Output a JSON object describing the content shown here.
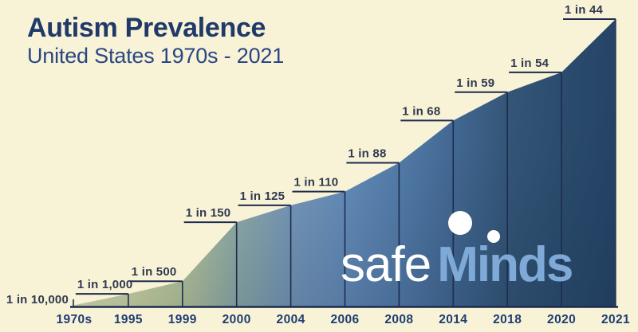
{
  "page": {
    "background_color": "#F8F2D6"
  },
  "header": {
    "title": "Autism Prevalence",
    "subtitle": "United States 1970s - 2021",
    "title_color": "#1F3968",
    "subtitle_color": "#2A4784"
  },
  "logo": {
    "part1": "safe",
    "part2": "Minds",
    "part1_color": "#FFFFFF",
    "part2_color": "#7FA9D6",
    "marks": [
      "head-circle",
      "small-dot"
    ]
  },
  "chart_data": {
    "type": "area",
    "title": "Autism Prevalence",
    "subtitle": "United States 1970s - 2021",
    "categories": [
      "1970s",
      "1995",
      "1999",
      "2000",
      "2004",
      "2006",
      "2008",
      "2014",
      "2018",
      "2020",
      "2021"
    ],
    "points": [
      {
        "year": "1970s",
        "label": "1 in 10,000",
        "denominator": 10000
      },
      {
        "year": "1995",
        "label": "1 in 1,000",
        "denominator": 1000
      },
      {
        "year": "1999",
        "label": "1 in 500",
        "denominator": 500
      },
      {
        "year": "2000",
        "label": "1 in 150",
        "denominator": 150
      },
      {
        "year": "2004",
        "label": "1 in 125",
        "denominator": 125
      },
      {
        "year": "2006",
        "label": "1 in 110",
        "denominator": 110
      },
      {
        "year": "2008",
        "label": "1 in 88",
        "denominator": 88
      },
      {
        "year": "2014",
        "label": "1 in 68",
        "denominator": 68
      },
      {
        "year": "2018",
        "label": "1 in 59",
        "denominator": 59
      },
      {
        "year": "2020",
        "label": "1 in 54",
        "denominator": 54
      },
      {
        "year": "2021",
        "label": "1 in 44",
        "denominator": 44
      }
    ],
    "value_meaning": "prevalence shown as 1 in N children; area height proportional to rate per 10,000",
    "xlabel": "",
    "ylabel": "",
    "grid": false,
    "legend": "none",
    "gradient_stops": [
      "#E8EABC",
      "#DBE2AB",
      "#C3D0A1",
      "#96B2AC",
      "#7B9DBE",
      "#6890BE",
      "#567FAD",
      "#446A95",
      "#355778",
      "#2C4D6F",
      "#254466"
    ],
    "line_color": "#1D2C4E",
    "label_color": "#303A4F",
    "tick_label_color": "#1E3D73"
  }
}
